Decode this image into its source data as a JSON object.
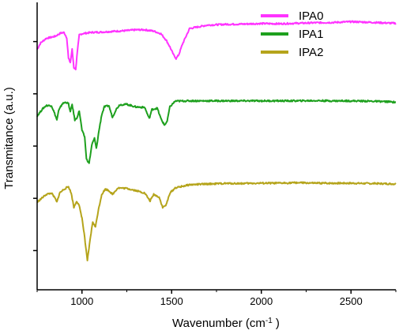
{
  "chart_data": {
    "type": "line",
    "xlabel": "Wavenumber (cm",
    "xlabel_sup": "-1",
    "xlabel_tail": " )",
    "ylabel": "Transmitance (a.u.)",
    "xlim": [
      750,
      2750
    ],
    "x_ticks": [
      1000,
      1500,
      2000,
      2500
    ],
    "x_tick_labels": [
      "1000",
      "1500",
      "2000",
      "2500"
    ],
    "y_ticks_unlabeled": true,
    "grid": false,
    "legend_position": "top-right",
    "series": [
      {
        "name": "IPA0",
        "color": "#ff33ff",
        "points": [
          [
            750,
            3.7
          ],
          [
            770,
            3.95
          ],
          [
            800,
            4.12
          ],
          [
            850,
            4.2
          ],
          [
            880,
            4.32
          ],
          [
            900,
            4.35
          ],
          [
            915,
            4.15
          ],
          [
            925,
            3.35
          ],
          [
            935,
            3.2
          ],
          [
            945,
            3.7
          ],
          [
            955,
            3.0
          ],
          [
            965,
            2.95
          ],
          [
            975,
            3.65
          ],
          [
            985,
            4.25
          ],
          [
            1000,
            4.3
          ],
          [
            1050,
            4.35
          ],
          [
            1100,
            4.36
          ],
          [
            1150,
            4.38
          ],
          [
            1200,
            4.4
          ],
          [
            1250,
            4.42
          ],
          [
            1300,
            4.45
          ],
          [
            1350,
            4.45
          ],
          [
            1400,
            4.4
          ],
          [
            1440,
            4.3
          ],
          [
            1470,
            4.05
          ],
          [
            1490,
            3.8
          ],
          [
            1510,
            3.5
          ],
          [
            1525,
            3.35
          ],
          [
            1540,
            3.5
          ],
          [
            1560,
            3.9
          ],
          [
            1600,
            4.5
          ],
          [
            1700,
            4.63
          ],
          [
            1800,
            4.66
          ],
          [
            1900,
            4.67
          ],
          [
            2000,
            4.69
          ],
          [
            2100,
            4.68
          ],
          [
            2200,
            4.7
          ],
          [
            2300,
            4.72
          ],
          [
            2400,
            4.73
          ],
          [
            2500,
            4.76
          ],
          [
            2600,
            4.74
          ],
          [
            2700,
            4.71
          ],
          [
            2750,
            4.7
          ]
        ]
      },
      {
        "name": "IPA1",
        "color": "#1ea01e",
        "points": [
          [
            750,
            1.15
          ],
          [
            780,
            1.42
          ],
          [
            800,
            1.55
          ],
          [
            830,
            1.55
          ],
          [
            850,
            1.2
          ],
          [
            860,
            1.0
          ],
          [
            870,
            1.35
          ],
          [
            890,
            1.62
          ],
          [
            910,
            1.68
          ],
          [
            925,
            1.62
          ],
          [
            935,
            1.3
          ],
          [
            945,
            1.6
          ],
          [
            960,
            1.0
          ],
          [
            970,
            1.05
          ],
          [
            985,
            1.35
          ],
          [
            1000,
            0.6
          ],
          [
            1015,
            0.35
          ],
          [
            1025,
            -0.5
          ],
          [
            1040,
            -0.65
          ],
          [
            1055,
            0.05
          ],
          [
            1070,
            0.3
          ],
          [
            1080,
            -0.1
          ],
          [
            1095,
            0.6
          ],
          [
            1110,
            1.2
          ],
          [
            1125,
            1.5
          ],
          [
            1150,
            1.55
          ],
          [
            1170,
            1.1
          ],
          [
            1190,
            1.4
          ],
          [
            1210,
            1.58
          ],
          [
            1250,
            1.6
          ],
          [
            1300,
            1.5
          ],
          [
            1350,
            1.48
          ],
          [
            1375,
            1.05
          ],
          [
            1390,
            1.4
          ],
          [
            1420,
            1.45
          ],
          [
            1440,
            1.05
          ],
          [
            1460,
            0.8
          ],
          [
            1475,
            0.95
          ],
          [
            1490,
            1.5
          ],
          [
            1520,
            1.72
          ],
          [
            1600,
            1.73
          ],
          [
            1700,
            1.73
          ],
          [
            1800,
            1.73
          ],
          [
            1900,
            1.73
          ],
          [
            2000,
            1.73
          ],
          [
            2100,
            1.73
          ],
          [
            2200,
            1.73
          ],
          [
            2300,
            1.74
          ],
          [
            2400,
            1.73
          ],
          [
            2500,
            1.73
          ],
          [
            2600,
            1.72
          ],
          [
            2700,
            1.7
          ],
          [
            2750,
            1.68
          ]
        ]
      },
      {
        "name": "IPA2",
        "color": "#b5a41b",
        "points": [
          [
            750,
            -2.15
          ],
          [
            800,
            -1.85
          ],
          [
            830,
            -1.8
          ],
          [
            850,
            -2.0
          ],
          [
            860,
            -2.15
          ],
          [
            875,
            -1.8
          ],
          [
            900,
            -1.65
          ],
          [
            925,
            -1.55
          ],
          [
            940,
            -1.8
          ],
          [
            955,
            -2.35
          ],
          [
            970,
            -2.1
          ],
          [
            985,
            -2.3
          ],
          [
            1000,
            -2.75
          ],
          [
            1015,
            -3.5
          ],
          [
            1030,
            -4.4
          ],
          [
            1045,
            -3.6
          ],
          [
            1060,
            -2.9
          ],
          [
            1075,
            -3.1
          ],
          [
            1090,
            -2.5
          ],
          [
            1110,
            -1.85
          ],
          [
            1130,
            -1.65
          ],
          [
            1150,
            -1.7
          ],
          [
            1170,
            -1.85
          ],
          [
            1200,
            -1.6
          ],
          [
            1250,
            -1.62
          ],
          [
            1300,
            -1.7
          ],
          [
            1350,
            -1.8
          ],
          [
            1380,
            -2.1
          ],
          [
            1400,
            -1.85
          ],
          [
            1430,
            -1.95
          ],
          [
            1450,
            -2.35
          ],
          [
            1470,
            -2.25
          ],
          [
            1490,
            -1.8
          ],
          [
            1520,
            -1.6
          ],
          [
            1600,
            -1.48
          ],
          [
            1700,
            -1.45
          ],
          [
            1800,
            -1.43
          ],
          [
            1900,
            -1.43
          ],
          [
            2000,
            -1.42
          ],
          [
            2100,
            -1.42
          ],
          [
            2200,
            -1.4
          ],
          [
            2300,
            -1.42
          ],
          [
            2400,
            -1.42
          ],
          [
            2500,
            -1.42
          ],
          [
            2600,
            -1.43
          ],
          [
            2700,
            -1.44
          ],
          [
            2750,
            -1.45
          ]
        ]
      }
    ]
  }
}
